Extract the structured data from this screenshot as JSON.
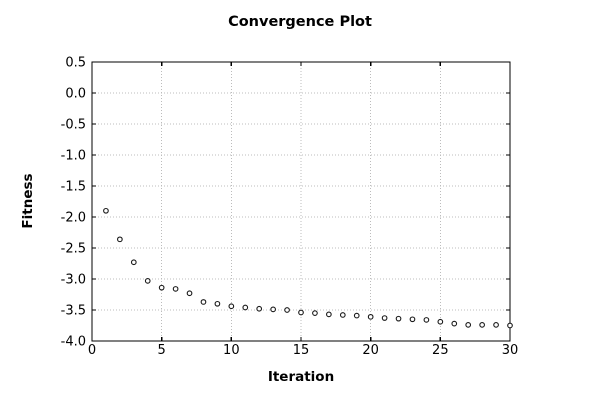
{
  "chart_data": {
    "type": "scatter",
    "title": "Convergence Plot",
    "xlabel": "Iteration",
    "ylabel": "Fitness",
    "x": [
      1,
      2,
      3,
      4,
      5,
      6,
      7,
      8,
      9,
      10,
      11,
      12,
      13,
      14,
      15,
      16,
      17,
      18,
      19,
      20,
      21,
      22,
      23,
      24,
      25,
      26,
      27,
      28,
      29,
      30
    ],
    "y": [
      -1.9,
      -2.36,
      -2.73,
      -3.03,
      -3.14,
      -3.16,
      -3.23,
      -3.37,
      -3.4,
      -3.44,
      -3.46,
      -3.48,
      -3.49,
      -3.5,
      -3.54,
      -3.55,
      -3.57,
      -3.58,
      -3.59,
      -3.61,
      -3.63,
      -3.64,
      -3.65,
      -3.66,
      -3.69,
      -3.72,
      -3.74,
      -3.74,
      -3.74,
      -3.75
    ],
    "xlim": [
      0,
      30
    ],
    "ylim": [
      -4.0,
      0.5
    ],
    "xticks": [
      0,
      5,
      10,
      15,
      20,
      25,
      30
    ],
    "yticks": [
      0.5,
      0.0,
      -0.5,
      -1.0,
      -1.5,
      -2.0,
      -2.5,
      -3.0,
      -3.5,
      -4.0
    ],
    "grid": "dotted",
    "legend": "none",
    "marker": "open-circle",
    "colors": {
      "background": "#ffffff",
      "axis": "#000000",
      "grid": "#bcbcbc",
      "marker": "#1a1a1a",
      "text": "#000000"
    }
  }
}
